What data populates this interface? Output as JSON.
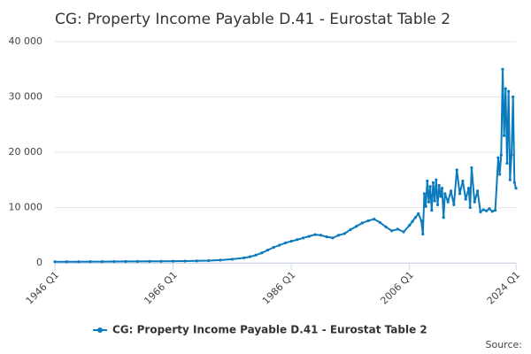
{
  "chart_data": {
    "type": "line",
    "title": "CG: Property Income Payable D.41 - Eurostat Table 2",
    "source": "Source:",
    "x": [
      1946,
      1948,
      1950,
      1952,
      1954,
      1956,
      1958,
      1960,
      1962,
      1964,
      1966,
      1968,
      1970,
      1972,
      1974,
      1976,
      1978,
      1979,
      1980,
      1981,
      1982,
      1983,
      1984,
      1985,
      1986,
      1987,
      1988,
      1989,
      1990,
      1991,
      1992,
      1993,
      1994,
      1995,
      1996,
      1997,
      1998,
      1999,
      2000,
      2001,
      2002,
      2003,
      2004,
      2005,
      2006,
      2006.5,
      2007,
      2007.5,
      2008,
      2008.25,
      2008.5,
      2008.75,
      2009,
      2009.25,
      2009.5,
      2009.75,
      2010,
      2010.25,
      2010.5,
      2010.75,
      2011,
      2011.25,
      2011.5,
      2011.75,
      2012,
      2012.5,
      2013,
      2013.5,
      2014,
      2014.5,
      2015,
      2015.5,
      2016,
      2016.25,
      2016.5,
      2017,
      2017.5,
      2018,
      2018.5,
      2019,
      2019.5,
      2020,
      2020.5,
      2021,
      2021.25,
      2021.5,
      2021.75,
      2022,
      2022.25,
      2022.5,
      2022.75,
      2023,
      2023.25,
      2023.5,
      2023.75,
      2024
    ],
    "series": [
      {
        "name": "CG: Property Income Payable D.41 - Eurostat Table 2",
        "color": "#0b7bbd",
        "values": [
          200,
          200,
          210,
          220,
          230,
          240,
          250,
          260,
          270,
          280,
          300,
          320,
          350,
          400,
          500,
          650,
          900,
          1100,
          1400,
          1800,
          2300,
          2800,
          3200,
          3600,
          3900,
          4200,
          4500,
          4800,
          5100,
          5000,
          4700,
          4500,
          5000,
          5300,
          6000,
          6600,
          7200,
          7600,
          7900,
          7300,
          6500,
          5800,
          6100,
          5600,
          6800,
          7500,
          8200,
          8900,
          7600,
          5200,
          12500,
          10200,
          14800,
          11000,
          13800,
          9500,
          14500,
          11200,
          15000,
          10500,
          14000,
          12000,
          13500,
          8200,
          12500,
          11000,
          13000,
          10500,
          16800,
          12500,
          14800,
          11500,
          13500,
          10000,
          17200,
          11000,
          13000,
          9200,
          9600,
          9400,
          9800,
          9300,
          9500,
          19000,
          16000,
          19500,
          35000,
          23000,
          31500,
          18000,
          31000,
          15000,
          19500,
          30000,
          14500,
          13500
        ]
      }
    ],
    "xlim": [
      1946,
      2024
    ],
    "xticks": [
      {
        "value": 1946,
        "label": "1946 Q1"
      },
      {
        "value": 1966,
        "label": "1966 Q1"
      },
      {
        "value": 1986,
        "label": "1986 Q1"
      },
      {
        "value": 2006,
        "label": "2006 Q1"
      },
      {
        "value": 2024,
        "label": "2024 Q1"
      }
    ],
    "ylim": [
      0,
      40000
    ],
    "yticks": [
      0,
      {
        "value": 10000,
        "label": "10 000"
      },
      {
        "value": 20000,
        "label": "20 000"
      },
      {
        "value": 30000,
        "label": "30 000"
      },
      {
        "value": 40000,
        "label": "40 000"
      }
    ],
    "grid": true
  }
}
